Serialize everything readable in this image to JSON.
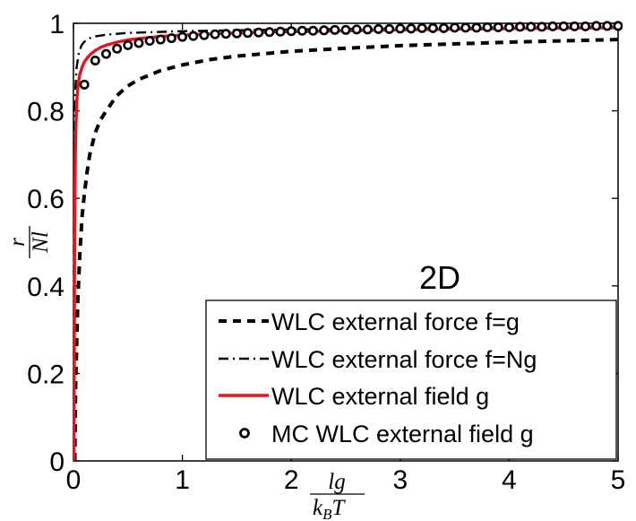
{
  "chart_data": {
    "type": "line",
    "title": "",
    "annotation": "2D",
    "xlabel": {
      "num": "lg",
      "den_main": "k",
      "den_sub": "B",
      "den_tail": "T"
    },
    "ylabel": {
      "num": "r",
      "den": "Nl"
    },
    "xlim": [
      0,
      5
    ],
    "ylim": [
      0,
      1
    ],
    "xticks": [
      "0",
      "1",
      "2",
      "3",
      "4",
      "5"
    ],
    "yticks": [
      "0",
      "0.2",
      "0.4",
      "0.6",
      "0.8",
      "1"
    ],
    "grid": false,
    "legend_position": "bottom-right",
    "series": [
      {
        "name": "WLC external force f=g",
        "style": "dashed",
        "color": "#000000",
        "x": [
          0.012,
          0.02,
          0.04,
          0.06,
          0.08,
          0.1,
          0.125,
          0.15,
          0.2,
          0.25,
          0.3,
          0.4,
          0.5,
          0.6,
          0.8,
          1.0,
          1.25,
          1.5,
          2.0,
          2.5,
          3.0,
          3.5,
          4.0,
          4.5,
          5.0
        ],
        "y": [
          0.0,
          0.17,
          0.37,
          0.48,
          0.56,
          0.61,
          0.66,
          0.7,
          0.75,
          0.78,
          0.8,
          0.835,
          0.857,
          0.872,
          0.892,
          0.905,
          0.917,
          0.925,
          0.936,
          0.943,
          0.949,
          0.953,
          0.957,
          0.96,
          0.963
        ]
      },
      {
        "name": "WLC external force f=Ng",
        "style": "dashdot",
        "color": "#000000",
        "x": [
          0.002,
          0.005,
          0.01,
          0.015,
          0.02,
          0.03,
          0.05,
          0.075,
          0.1,
          0.15,
          0.2,
          0.3,
          0.5,
          0.75,
          1.0,
          1.5,
          2.0,
          3.0,
          4.0,
          5.0
        ],
        "y": [
          0.0,
          0.55,
          0.75,
          0.82,
          0.86,
          0.9,
          0.933,
          0.95,
          0.958,
          0.966,
          0.97,
          0.974,
          0.978,
          0.98,
          0.982,
          0.984,
          0.986,
          0.988,
          0.99,
          0.992
        ]
      },
      {
        "name": "WLC external field g",
        "style": "solid",
        "color": "#e8141b",
        "x": [
          0.005,
          0.01,
          0.015,
          0.02,
          0.03,
          0.045,
          0.06,
          0.08,
          0.1,
          0.13,
          0.16,
          0.2,
          0.25,
          0.3,
          0.4,
          0.5,
          0.6,
          0.8,
          1.0,
          1.5,
          2.0,
          3.0,
          4.0,
          5.0
        ],
        "y": [
          0.0,
          0.45,
          0.64,
          0.74,
          0.82,
          0.865,
          0.885,
          0.9,
          0.912,
          0.922,
          0.93,
          0.938,
          0.945,
          0.95,
          0.957,
          0.962,
          0.965,
          0.97,
          0.973,
          0.978,
          0.981,
          0.985,
          0.988,
          0.99
        ]
      },
      {
        "name": "MC WLC external field g",
        "style": "markers",
        "color": "#000000",
        "x": [
          0.1,
          0.2,
          0.3,
          0.4,
          0.5,
          0.6,
          0.7,
          0.8,
          0.9,
          1.0,
          1.1,
          1.2,
          1.3,
          1.4,
          1.5,
          1.6,
          1.7,
          1.8,
          1.9,
          2.0,
          2.1,
          2.2,
          2.3,
          2.4,
          2.5,
          2.6,
          2.7,
          2.8,
          2.9,
          3.0,
          3.1,
          3.2,
          3.3,
          3.4,
          3.5,
          3.6,
          3.7,
          3.8,
          3.9,
          4.0,
          4.1,
          4.2,
          4.3,
          4.4,
          4.5,
          4.6,
          4.7,
          4.8,
          4.9,
          5.0
        ],
        "y": [
          0.86,
          0.915,
          0.93,
          0.942,
          0.95,
          0.955,
          0.96,
          0.963,
          0.966,
          0.969,
          0.971,
          0.973,
          0.975,
          0.976,
          0.977,
          0.978,
          0.979,
          0.98,
          0.981,
          0.982,
          0.983,
          0.983,
          0.984,
          0.985,
          0.985,
          0.986,
          0.986,
          0.987,
          0.987,
          0.988,
          0.988,
          0.989,
          0.989,
          0.989,
          0.99,
          0.99,
          0.99,
          0.991,
          0.991,
          0.991,
          0.992,
          0.992,
          0.992,
          0.993,
          0.993,
          0.993,
          0.993,
          0.994,
          0.994,
          0.994
        ]
      }
    ]
  }
}
